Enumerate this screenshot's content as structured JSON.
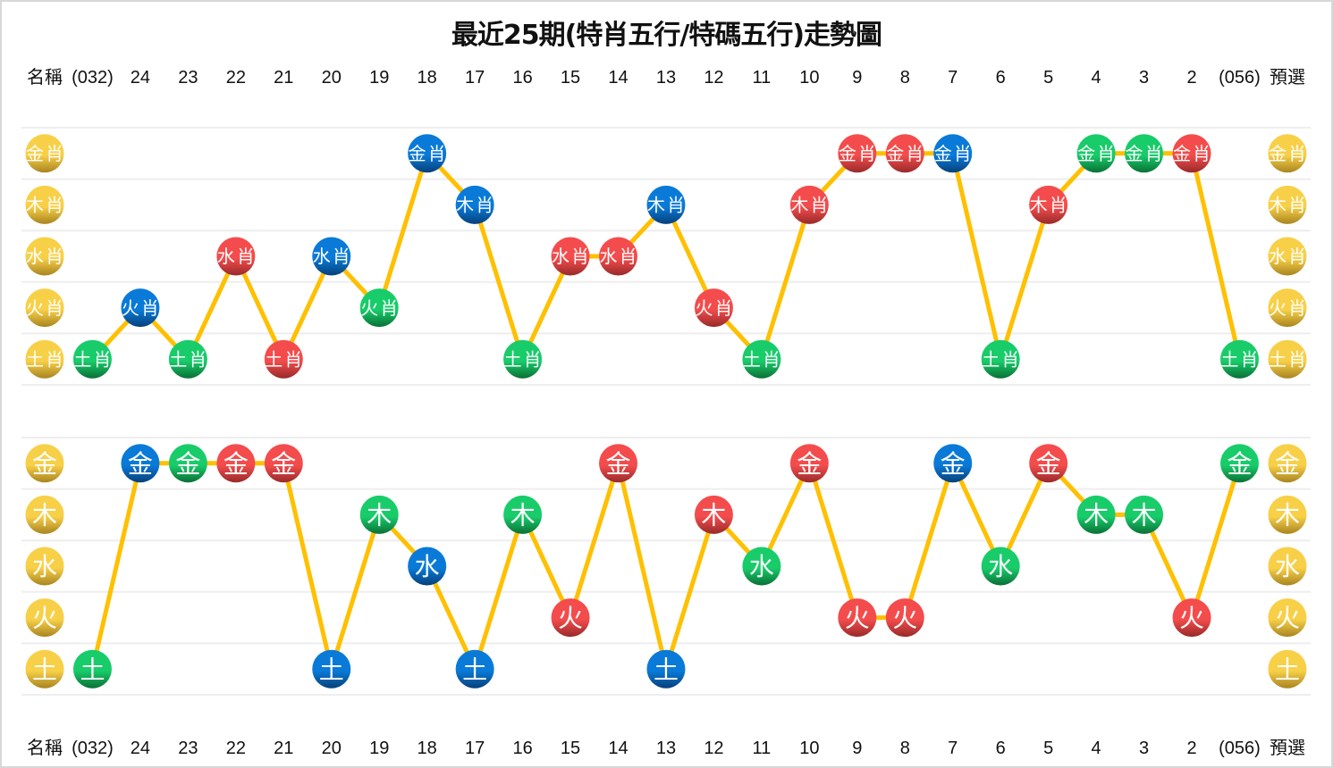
{
  "title": "最近25期(特肖五行/特碼五行)走勢圖",
  "columns": [
    "名稱",
    "(032)",
    "24",
    "23",
    "22",
    "21",
    "20",
    "19",
    "18",
    "17",
    "16",
    "15",
    "14",
    "13",
    "12",
    "11",
    "10",
    "9",
    "8",
    "7",
    "6",
    "5",
    "4",
    "3",
    "2",
    "(056)",
    "預選"
  ],
  "colors": {
    "gold": "#e8b830",
    "blue": "#0a6ec0",
    "green": "#14b05a",
    "red": "#e03c3c",
    "line": "#ffc000",
    "grid": "#eeeeee"
  },
  "chart_data": [
    {
      "type": "line",
      "rows": [
        "金肖",
        "木肖",
        "水肖",
        "火肖",
        "土肖"
      ],
      "label_color": "gold",
      "points": [
        {
          "period": "(032)",
          "value": "土肖",
          "color": "green"
        },
        {
          "period": "24",
          "value": "火肖",
          "color": "blue"
        },
        {
          "period": "23",
          "value": "土肖",
          "color": "green"
        },
        {
          "period": "22",
          "value": "水肖",
          "color": "red"
        },
        {
          "period": "21",
          "value": "土肖",
          "color": "red"
        },
        {
          "period": "20",
          "value": "水肖",
          "color": "blue"
        },
        {
          "period": "19",
          "value": "火肖",
          "color": "green"
        },
        {
          "period": "18",
          "value": "金肖",
          "color": "blue"
        },
        {
          "period": "17",
          "value": "木肖",
          "color": "blue"
        },
        {
          "period": "16",
          "value": "土肖",
          "color": "green"
        },
        {
          "period": "15",
          "value": "水肖",
          "color": "red"
        },
        {
          "period": "14",
          "value": "水肖",
          "color": "red"
        },
        {
          "period": "13",
          "value": "木肖",
          "color": "blue"
        },
        {
          "period": "12",
          "value": "火肖",
          "color": "red"
        },
        {
          "period": "11",
          "value": "土肖",
          "color": "green"
        },
        {
          "period": "10",
          "value": "木肖",
          "color": "red"
        },
        {
          "period": "9",
          "value": "金肖",
          "color": "red"
        },
        {
          "period": "8",
          "value": "金肖",
          "color": "red"
        },
        {
          "period": "7",
          "value": "金肖",
          "color": "blue"
        },
        {
          "period": "6",
          "value": "土肖",
          "color": "green"
        },
        {
          "period": "5",
          "value": "木肖",
          "color": "red"
        },
        {
          "period": "4",
          "value": "金肖",
          "color": "green"
        },
        {
          "period": "3",
          "value": "金肖",
          "color": "green"
        },
        {
          "period": "2",
          "value": "金肖",
          "color": "red"
        },
        {
          "period": "(056)",
          "value": "土肖",
          "color": "green"
        }
      ]
    },
    {
      "type": "line",
      "rows": [
        "金",
        "木",
        "水",
        "火",
        "土"
      ],
      "label_color": "gold",
      "points": [
        {
          "period": "(032)",
          "value": "土",
          "color": "green"
        },
        {
          "period": "24",
          "value": "金",
          "color": "blue"
        },
        {
          "period": "23",
          "value": "金",
          "color": "green"
        },
        {
          "period": "22",
          "value": "金",
          "color": "red"
        },
        {
          "period": "21",
          "value": "金",
          "color": "red"
        },
        {
          "period": "20",
          "value": "土",
          "color": "blue"
        },
        {
          "period": "19",
          "value": "木",
          "color": "green"
        },
        {
          "period": "18",
          "value": "水",
          "color": "blue"
        },
        {
          "period": "17",
          "value": "土",
          "color": "blue"
        },
        {
          "period": "16",
          "value": "木",
          "color": "green"
        },
        {
          "period": "15",
          "value": "火",
          "color": "red"
        },
        {
          "period": "14",
          "value": "金",
          "color": "red"
        },
        {
          "period": "13",
          "value": "土",
          "color": "blue"
        },
        {
          "period": "12",
          "value": "木",
          "color": "red"
        },
        {
          "period": "11",
          "value": "水",
          "color": "green"
        },
        {
          "period": "10",
          "value": "金",
          "color": "red"
        },
        {
          "period": "9",
          "value": "火",
          "color": "red"
        },
        {
          "period": "8",
          "value": "火",
          "color": "red"
        },
        {
          "period": "7",
          "value": "金",
          "color": "blue"
        },
        {
          "period": "6",
          "value": "水",
          "color": "green"
        },
        {
          "period": "5",
          "value": "金",
          "color": "red"
        },
        {
          "period": "4",
          "value": "木",
          "color": "green"
        },
        {
          "period": "3",
          "value": "木",
          "color": "green"
        },
        {
          "period": "2",
          "value": "火",
          "color": "red"
        },
        {
          "period": "(056)",
          "value": "金",
          "color": "green"
        }
      ]
    }
  ]
}
